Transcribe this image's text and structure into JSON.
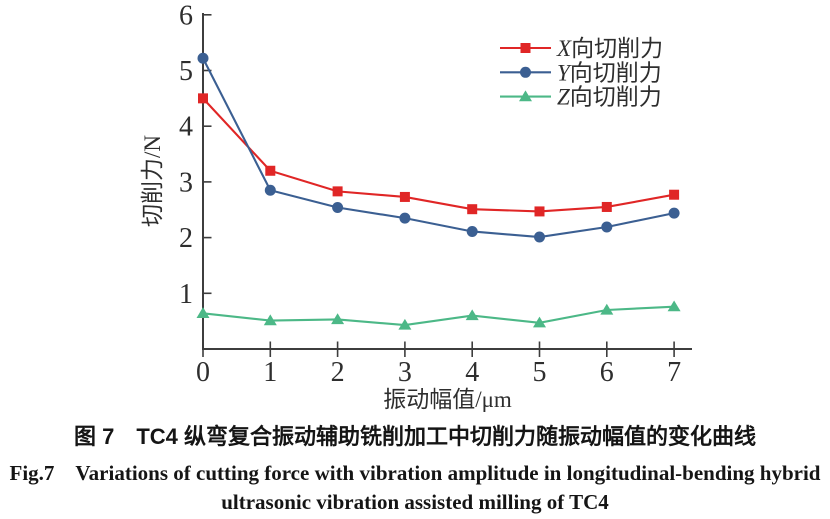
{
  "figure": {
    "caption_zh": "图 7　TC4 纵弯复合振动辅助铣削加工中切削力随振动幅值的变化曲线",
    "caption_en_line1": "Fig.7　Variations of cutting force with vibration amplitude in longitudinal-bending hybrid",
    "caption_en_line2": "ultrasonic vibration assisted milling of TC4"
  },
  "chart_data": {
    "type": "line",
    "title": "",
    "xlabel": "振动幅值/μm",
    "ylabel": "切削力/N",
    "x": [
      0,
      1,
      2,
      3,
      4,
      5,
      6,
      7
    ],
    "xticks": [
      0,
      1,
      2,
      3,
      4,
      5,
      6,
      7
    ],
    "yticks": [
      1,
      2,
      3,
      4,
      5,
      6
    ],
    "xlim": [
      0,
      7.3
    ],
    "ylim": [
      0,
      6.05
    ],
    "grid": false,
    "legend_position": "top-right",
    "axis_color": "#3d3d3d",
    "series": [
      {
        "name": "X向切削力",
        "name_prefix": "X",
        "name_suffix": "向切削力",
        "marker": "square",
        "color": "#e02626",
        "values": [
          4.5,
          3.2,
          2.83,
          2.73,
          2.51,
          2.47,
          2.55,
          2.77
        ]
      },
      {
        "name": "Y向切削力",
        "name_prefix": "Y",
        "name_suffix": "向切削力",
        "marker": "circle",
        "color": "#3b5f92",
        "values": [
          5.22,
          2.85,
          2.54,
          2.35,
          2.11,
          2.01,
          2.19,
          2.44
        ]
      },
      {
        "name": "Z向切削力",
        "name_prefix": "Z",
        "name_suffix": "向切削力",
        "marker": "triangle",
        "color": "#4cb887",
        "values": [
          0.64,
          0.51,
          0.53,
          0.43,
          0.6,
          0.47,
          0.7,
          0.76
        ]
      }
    ]
  }
}
